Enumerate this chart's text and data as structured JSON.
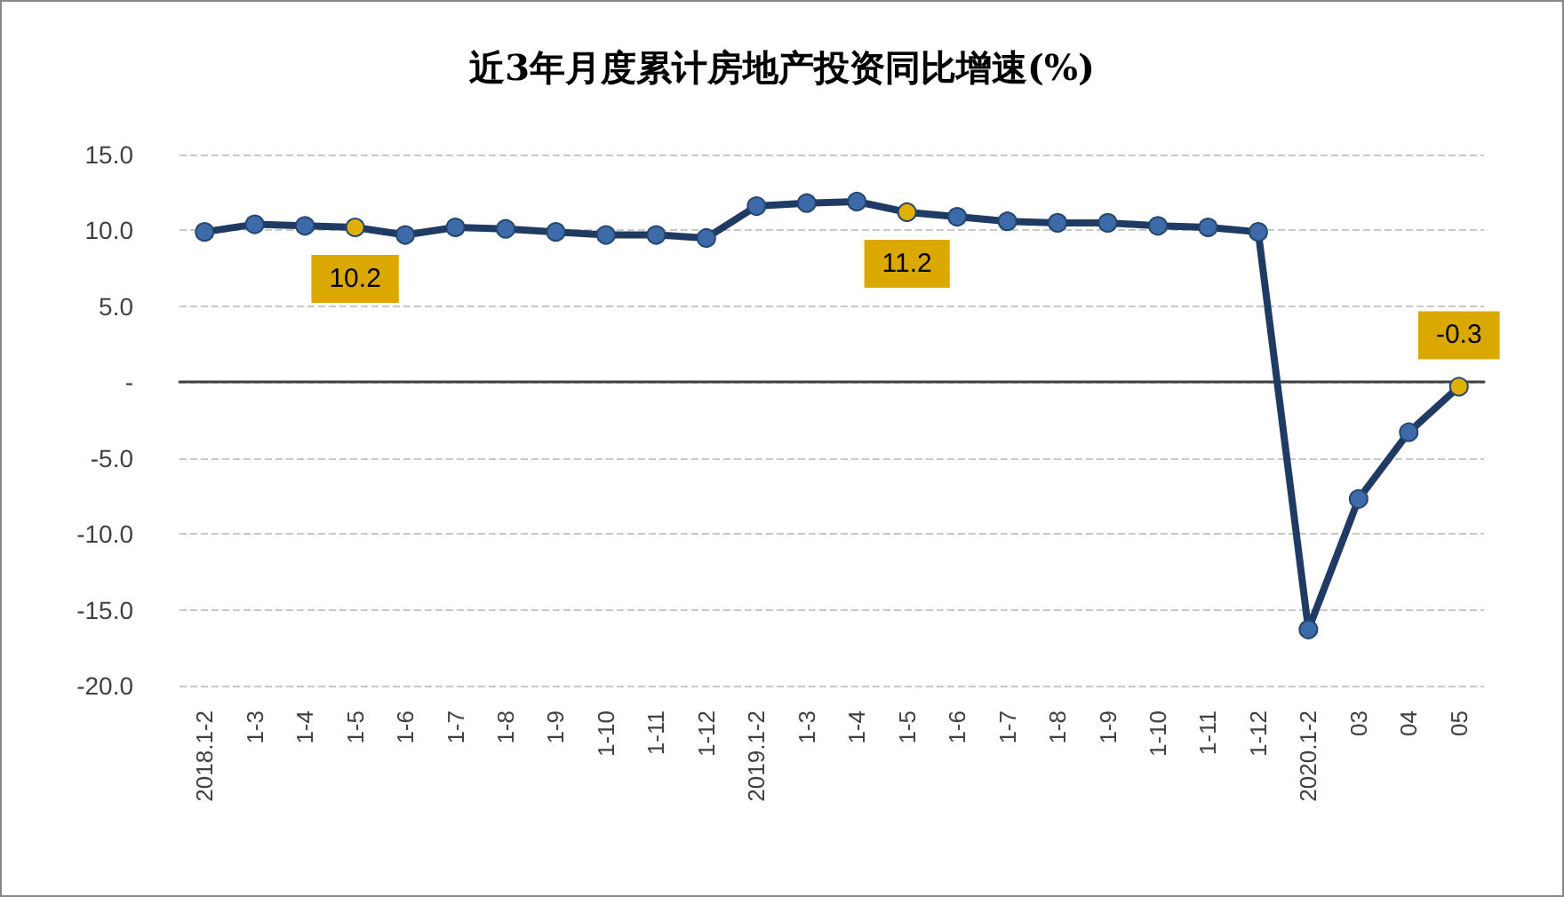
{
  "chart_data": {
    "type": "line",
    "title": "近3年月度累计房地产投资同比增速(%)",
    "categories": [
      "2018.1-2",
      "1-3",
      "1-4",
      "1-5",
      "1-6",
      "1-7",
      "1-8",
      "1-9",
      "1-10",
      "1-11",
      "1-12",
      "2019.1-2",
      "1-3",
      "1-4",
      "1-5",
      "1-6",
      "1-7",
      "1-8",
      "1-9",
      "1-10",
      "1-11",
      "1-12",
      "2020.1-2",
      "03",
      "04",
      "05"
    ],
    "series": [
      {
        "color": "#1f3b63",
        "values": [
          9.9,
          10.4,
          10.3,
          10.2,
          9.7,
          10.2,
          10.1,
          9.9,
          9.7,
          9.7,
          9.5,
          11.6,
          11.8,
          11.9,
          11.2,
          10.9,
          10.6,
          10.5,
          10.5,
          10.3,
          10.2,
          9.9,
          -16.3,
          -7.7,
          -3.3,
          -0.3
        ],
        "colors": [
          "#3d6aa8",
          "#3d6aa8",
          "#3d6aa8",
          "#e0b000",
          "#3d6aa8",
          "#3d6aa8",
          "#3d6aa8",
          "#3d6aa8",
          "#3d6aa8",
          "#3d6aa8",
          "#3d6aa8",
          "#3d6aa8",
          "#3d6aa8",
          "#3d6aa8",
          "#e0b000",
          "#3d6aa8",
          "#3d6aa8",
          "#3d6aa8",
          "#3d6aa8",
          "#3d6aa8",
          "#3d6aa8",
          "#3d6aa8",
          "#3d6aa8",
          "#3d6aa8",
          "#3d6aa8",
          "#e0b000"
        ],
        "value_labels": [
          null,
          null,
          null,
          "10.2",
          null,
          null,
          null,
          null,
          null,
          null,
          null,
          null,
          null,
          null,
          "11.2",
          null,
          null,
          null,
          null,
          null,
          null,
          null,
          null,
          null,
          null,
          "-0.3"
        ]
      }
    ],
    "ylim": [
      -20,
      15
    ],
    "yticks": [
      {
        "value": -20,
        "label": "-20.0"
      },
      {
        "value": -15,
        "label": "-15.0"
      },
      {
        "value": -10,
        "label": "-10.0"
      },
      {
        "value": -5,
        "label": "-5.0"
      },
      {
        "value": 0,
        "label": "-"
      },
      {
        "value": 5,
        "label": "5.0"
      },
      {
        "value": 10,
        "label": "10.0"
      },
      {
        "value": 15,
        "label": "15.0"
      }
    ],
    "grid": "y",
    "marker": "circle",
    "line_style": "solid"
  }
}
